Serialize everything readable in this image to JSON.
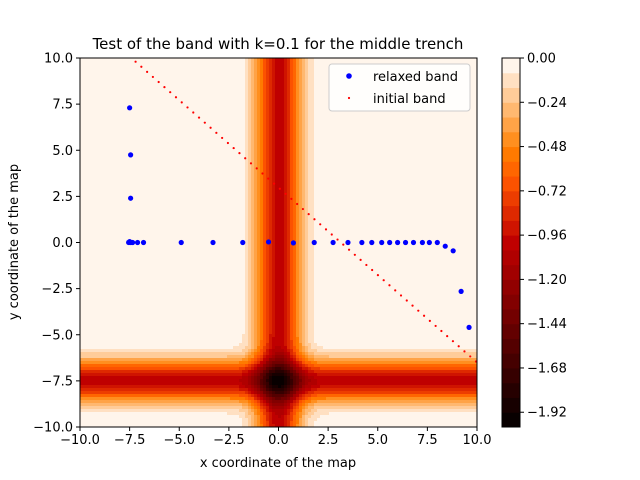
{
  "chart_data": {
    "type": "scatter",
    "title": "Test of the band with k=0.1 for the middle trench",
    "xlabel": "x coordinate of the map",
    "ylabel": "y coordinate of the map",
    "xlim": [
      -10,
      10
    ],
    "ylim": [
      -10,
      10
    ],
    "x_ticks": [
      -10,
      -7.5,
      -5,
      -2.5,
      0,
      2.5,
      5,
      7.5,
      10
    ],
    "y_ticks": [
      -10,
      -7.5,
      -5,
      -2.5,
      0,
      2.5,
      5,
      7.5,
      10
    ],
    "x_tick_labels": [
      "−10.0",
      "−7.5",
      "−5.0",
      "−2.5",
      "0.0",
      "2.5",
      "5.0",
      "7.5",
      "10.0"
    ],
    "y_tick_labels": [
      "−10.0",
      "−7.5",
      "−5.0",
      "−2.5",
      "0.0",
      "2.5",
      "5.0",
      "7.5",
      "10.0"
    ],
    "legend_position": "top-right",
    "background_field": {
      "type": "filled-contour",
      "description_of_shape": "trench along x=0 and trench along y=-7.5",
      "trench_x_center": 0,
      "trench_y_center": -7.5,
      "min_value": -2.0,
      "max_value": 0.0
    },
    "colorbar": {
      "ticks": [
        0.0,
        -0.24,
        -0.48,
        -0.72,
        -0.96,
        -1.2,
        -1.44,
        -1.68,
        -1.92
      ],
      "tick_labels": [
        "0.00",
        "−0.24",
        "−0.48",
        "−0.72",
        "−0.96",
        "−1.20",
        "−1.44",
        "−1.68",
        "−1.92"
      ],
      "vmin": -2.0,
      "vmax": 0.0,
      "levels": 25,
      "colormap": "gist_heat"
    },
    "series": [
      {
        "name": "relaxed band",
        "marker": "dot",
        "color": "#0000ff",
        "points": [
          [
            -7.5,
            7.3
          ],
          [
            -7.45,
            4.75
          ],
          [
            -7.45,
            2.4
          ],
          [
            -7.55,
            0.0
          ],
          [
            -7.5,
            0.05
          ],
          [
            -7.45,
            0.0
          ],
          [
            -7.35,
            0.0
          ],
          [
            -7.1,
            0.0
          ],
          [
            -6.8,
            0.0
          ],
          [
            -4.9,
            0.0
          ],
          [
            -3.3,
            0.0
          ],
          [
            -1.8,
            0.0
          ],
          [
            -0.5,
            0.03
          ],
          [
            0.75,
            -0.02
          ],
          [
            1.8,
            0.0
          ],
          [
            2.75,
            0.0
          ],
          [
            3.5,
            0.0
          ],
          [
            4.2,
            0.0
          ],
          [
            4.7,
            0.0
          ],
          [
            5.2,
            0.0
          ],
          [
            5.6,
            0.0
          ],
          [
            6.0,
            0.0
          ],
          [
            6.4,
            0.0
          ],
          [
            6.8,
            0.0
          ],
          [
            7.25,
            0.0
          ],
          [
            7.6,
            0.0
          ],
          [
            8.0,
            0.0
          ],
          [
            8.4,
            -0.2
          ],
          [
            8.8,
            -0.45
          ],
          [
            9.2,
            -2.65
          ],
          [
            9.6,
            -4.6
          ]
        ]
      },
      {
        "name": "initial band",
        "marker": "dot-small",
        "color": "#ff0000",
        "line": {
          "x_start": -7.2,
          "y_start": 9.8,
          "x_end": 9.95,
          "y_end": -6.45,
          "count": 60
        }
      }
    ]
  }
}
